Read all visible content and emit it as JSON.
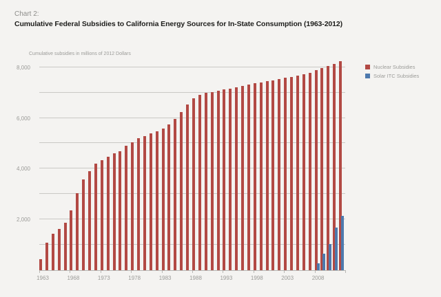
{
  "header": {
    "eyebrow": "Chart 2:",
    "title": "Cumulative Federal Subsidies to California Energy Sources for In-State Consumption (1963-2012)"
  },
  "chart": {
    "subtitle": "Cumulative subsidies in millions of 2012 Dollars",
    "legend": [
      {
        "label": "Nuclear Subsidies",
        "color": "#b24944"
      },
      {
        "label": "Solar ITC Subsidies",
        "color": "#4d79ad"
      }
    ]
  },
  "colors": {
    "background": "#f4f3f1",
    "nuclear_bar": "#b24944",
    "solar_bar": "#4d79ad",
    "gridline": "#c9c8c5",
    "axis_line": "#b7b6b3",
    "muted_text": "#9b9b98",
    "title_text": "#1d1d1b"
  },
  "chart_data": {
    "type": "bar",
    "title": "Cumulative Federal Subsidies to California Energy Sources for In-State Consumption (1963-2012)",
    "xlabel": "",
    "ylabel": "Cumulative subsidies in millions of 2012 Dollars",
    "ylim": [
      0,
      8400
    ],
    "grid": true,
    "gridline_step": 1000,
    "legend_position": "top-right",
    "categories": [
      1963,
      1964,
      1965,
      1966,
      1967,
      1968,
      1969,
      1970,
      1971,
      1972,
      1973,
      1974,
      1975,
      1976,
      1977,
      1978,
      1979,
      1980,
      1981,
      1982,
      1983,
      1984,
      1985,
      1986,
      1987,
      1988,
      1989,
      1990,
      1991,
      1992,
      1993,
      1994,
      1995,
      1996,
      1997,
      1998,
      1999,
      2000,
      2001,
      2002,
      2003,
      2004,
      2005,
      2006,
      2007,
      2008,
      2009,
      2010,
      2011,
      2012
    ],
    "series": [
      {
        "name": "Nuclear Subsidies",
        "color": "#b24944",
        "values": [
          430,
          1080,
          1430,
          1620,
          1870,
          2350,
          3030,
          3590,
          3890,
          4190,
          4330,
          4460,
          4600,
          4690,
          4900,
          5040,
          5190,
          5290,
          5380,
          5470,
          5570,
          5740,
          5960,
          6230,
          6520,
          6770,
          6900,
          7000,
          7030,
          7070,
          7120,
          7160,
          7220,
          7270,
          7310,
          7360,
          7400,
          7440,
          7490,
          7530,
          7580,
          7620,
          7670,
          7720,
          7790,
          7880,
          7960,
          8040,
          8120,
          8230
        ]
      },
      {
        "name": "Solar ITC Subsidies",
        "color": "#4d79ad",
        "values": [
          0,
          0,
          0,
          0,
          0,
          0,
          0,
          0,
          0,
          0,
          0,
          0,
          0,
          0,
          0,
          0,
          0,
          0,
          0,
          0,
          0,
          0,
          0,
          0,
          0,
          0,
          0,
          0,
          0,
          0,
          0,
          0,
          0,
          0,
          0,
          0,
          0,
          0,
          0,
          0,
          0,
          0,
          0,
          0,
          0,
          280,
          650,
          1020,
          1670,
          2150
        ]
      }
    ],
    "y_ticks": [
      {
        "value": 2000,
        "label": "2,000"
      },
      {
        "value": 4000,
        "label": "4,000"
      },
      {
        "value": 6000,
        "label": "6,000"
      },
      {
        "value": 8000,
        "label": "8,000"
      }
    ],
    "x_ticks": [
      "1963",
      "1968",
      "1973",
      "1978",
      "1983",
      "1988",
      "1993",
      "1998",
      "2003",
      "2008"
    ]
  }
}
